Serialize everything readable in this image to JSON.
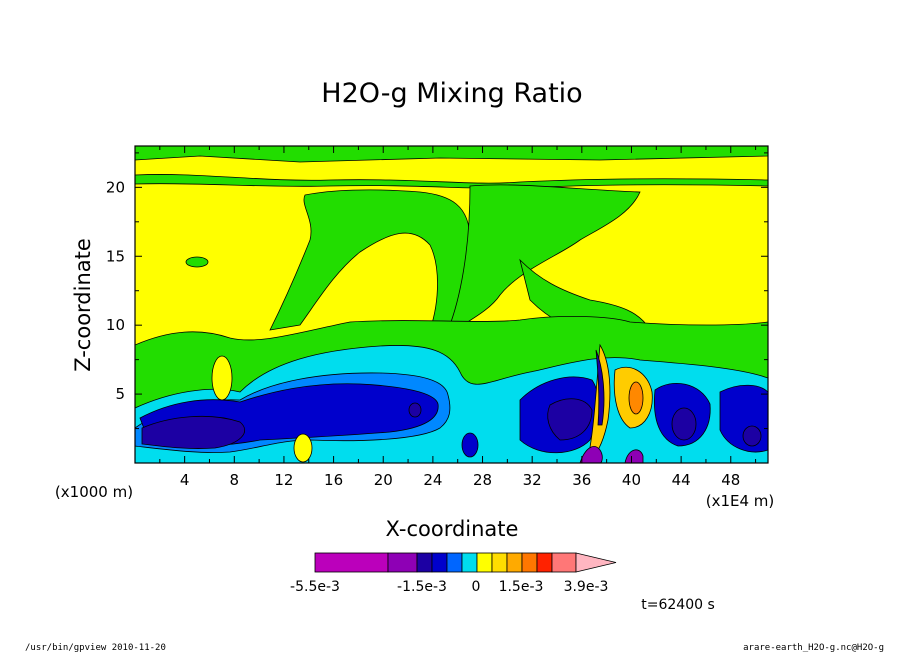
{
  "chart_data": {
    "type": "heatmap",
    "title": "H2O-g Mixing Ratio",
    "xlabel": "X-coordinate",
    "ylabel": "Z-coordinate",
    "x_unit_left": "(x1000 m)",
    "x_unit_right": "(x1E4 m)",
    "xlim": [
      0,
      51
    ],
    "ylim": [
      0,
      23
    ],
    "x_ticks": [
      4,
      8,
      12,
      16,
      20,
      24,
      28,
      32,
      36,
      40,
      44,
      48
    ],
    "y_ticks": [
      5,
      10,
      15,
      20
    ],
    "levels": [
      -0.0055,
      -0.003,
      -0.002,
      -0.0015,
      -0.001,
      -0.0005,
      0,
      0.0005,
      0.001,
      0.0015,
      0.002,
      0.0025,
      0.003,
      0.0039
    ],
    "colorbar_colors": [
      "#bb00bb",
      "#8e00b5",
      "#1c00a3",
      "#0000cc",
      "#0066ff",
      "#00ddee",
      "#ffff00",
      "#ffdd00",
      "#ffaa00",
      "#ff7700",
      "#ff2200",
      "#ff7777",
      "#ffb6c1"
    ],
    "colorbar_labels": [
      "-5.5e-3",
      "-1.5e-3",
      "0",
      "1.5e-3",
      "3.9e-3"
    ],
    "field_colors": {
      "dark_purple": "#8e00b5",
      "navy": "#1c00a3",
      "blue": "#0000cc",
      "light_blue": "#0088ff",
      "cyan": "#00ddee",
      "green": "#22dd00",
      "yellow": "#ffff00",
      "gold": "#ffcc00",
      "orange": "#ff8800"
    }
  },
  "annotations": {
    "time": "t=62400 s",
    "footer_left": "/usr/bin/gpview  2010-11-20",
    "footer_right": "arare-earth_H2O-g.nc@H2O-g"
  }
}
